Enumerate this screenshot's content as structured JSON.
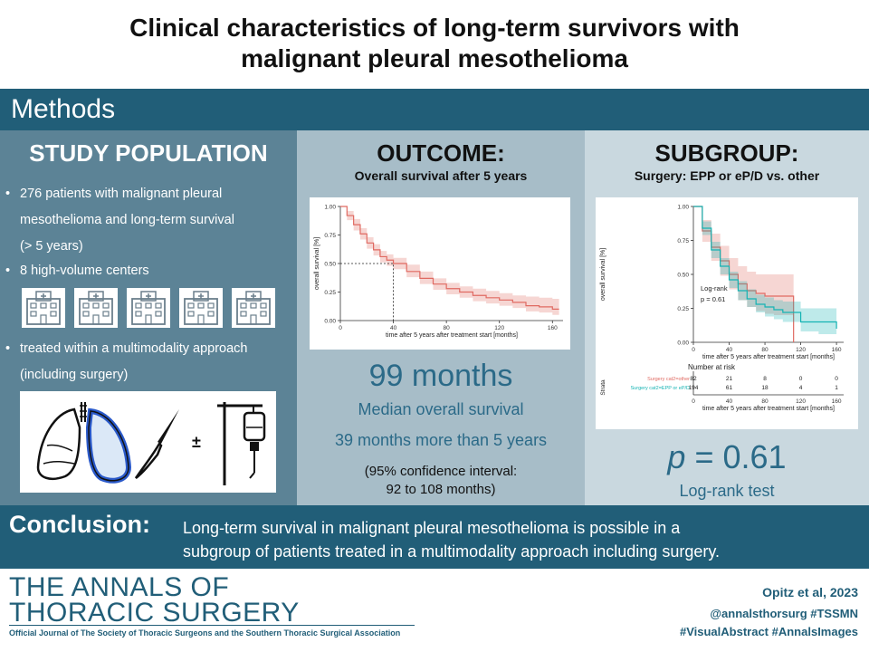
{
  "title": {
    "line1": "Clinical characteristics of long-term survivors with",
    "line2": "malignant pleural mesothelioma"
  },
  "methods": {
    "label": "Methods"
  },
  "study_population": {
    "heading": "STUDY POPULATION",
    "bullets": [
      {
        "lines": [
          "276 patients with malignant pleural",
          "mesothelioma and long-term survival",
          "(> 5 years)"
        ]
      },
      {
        "lines": [
          "8 high-volume centers"
        ]
      },
      {
        "lines": [
          "treated within a multimodality approach",
          "(including surgery)"
        ]
      }
    ],
    "hospital_icon_count": 5,
    "plus_minus": "±"
  },
  "outcome": {
    "heading": "OUTCOME:",
    "subheading": "Overall survival after 5 years",
    "median_value": "99 months",
    "median_label": "Median overall survival",
    "more_than": "39 months more than 5 years",
    "ci_line1": "(95% confidence interval:",
    "ci_line2": "92 to 108 months)"
  },
  "subgroup": {
    "heading": "SUBGROUP:",
    "subheading": "Surgery: EPP or eP/D vs. other",
    "p_symbol": "p",
    "p_value": "= 0.61",
    "test_label": "Log-rank test"
  },
  "conclusion": {
    "label": "Conclusion:",
    "line1": "Long-term survival in malignant pleural mesothelioma is possible in a",
    "line2": "subgroup of patients treated in a multimodality approach including surgery."
  },
  "footer": {
    "journal_line1": "THE ANNALS OF",
    "journal_line2": "THORACIC SURGERY",
    "journal_sub": "Official Journal of The Society of Thoracic Surgeons and the Southern Thoracic Surgical Association",
    "citation": "Opitz et al, 2023",
    "handle": "@annalsthorsurg #TSSMN",
    "tags": "#VisualAbstract #AnnalsImages"
  },
  "colors": {
    "accent": "#215e78",
    "km_red": "#e06a62",
    "km_teal": "#14b3b3"
  },
  "chart_data": [
    {
      "type": "line",
      "title": "",
      "xlabel": "time after 5 years after treatment start [months]",
      "ylabel": "overall survival [%]",
      "xlim": [
        0,
        168
      ],
      "ylim": [
        0,
        1
      ],
      "x_ticks": [
        0,
        40,
        80,
        120,
        160
      ],
      "y_ticks": [
        0.0,
        0.25,
        0.5,
        0.75,
        1.0
      ],
      "y_tick_labels": [
        "0.00",
        "0.25",
        "0.50",
        "0.75",
        "1.00"
      ],
      "median_marker": {
        "x": 40,
        "y": 0.5
      },
      "series": [
        {
          "name": "overall",
          "x": [
            0,
            5,
            10,
            15,
            20,
            25,
            30,
            35,
            40,
            50,
            60,
            70,
            80,
            90,
            100,
            110,
            120,
            130,
            140,
            150,
            160,
            165
          ],
          "values": [
            1.0,
            0.92,
            0.84,
            0.76,
            0.68,
            0.62,
            0.56,
            0.53,
            0.5,
            0.43,
            0.37,
            0.32,
            0.28,
            0.25,
            0.22,
            0.2,
            0.18,
            0.16,
            0.13,
            0.12,
            0.1,
            0.1
          ],
          "ci_low": [
            1.0,
            0.88,
            0.79,
            0.71,
            0.63,
            0.57,
            0.51,
            0.48,
            0.45,
            0.38,
            0.32,
            0.27,
            0.23,
            0.2,
            0.17,
            0.15,
            0.13,
            0.11,
            0.08,
            0.07,
            0.05,
            0.05
          ],
          "ci_high": [
            1.0,
            0.96,
            0.89,
            0.81,
            0.73,
            0.67,
            0.61,
            0.58,
            0.55,
            0.49,
            0.43,
            0.37,
            0.33,
            0.3,
            0.28,
            0.26,
            0.24,
            0.22,
            0.21,
            0.2,
            0.19,
            0.19
          ]
        }
      ]
    },
    {
      "type": "line",
      "title": "",
      "xlabel": "time after 5 years after treatment start [months]",
      "ylabel": "overall survival [%]",
      "xlim": [
        0,
        168
      ],
      "ylim": [
        0,
        1
      ],
      "x_ticks": [
        0,
        40,
        80,
        120,
        160
      ],
      "y_ticks": [
        0.0,
        0.25,
        0.5,
        0.75,
        1.0
      ],
      "y_tick_labels": [
        "0.00",
        "0.25",
        "0.50",
        "0.75",
        "1.00"
      ],
      "annotation_lines": [
        "Log-rank",
        "p = 0.61"
      ],
      "series": [
        {
          "name": "Surgery cat2=other",
          "x": [
            0,
            10,
            20,
            30,
            40,
            50,
            60,
            70,
            80,
            90,
            100,
            110,
            112
          ],
          "values": [
            1.0,
            0.82,
            0.7,
            0.6,
            0.5,
            0.43,
            0.38,
            0.36,
            0.34,
            0.34,
            0.34,
            0.34,
            0.0
          ],
          "ci_low": [
            1.0,
            0.74,
            0.6,
            0.49,
            0.39,
            0.31,
            0.26,
            0.23,
            0.21,
            0.2,
            0.2,
            0.2,
            0.0
          ],
          "ci_high": [
            1.0,
            0.9,
            0.8,
            0.71,
            0.62,
            0.56,
            0.52,
            0.5,
            0.5,
            0.5,
            0.5,
            0.5,
            0.0
          ]
        },
        {
          "name": "Surgery cat2=EPP or eP/D",
          "x": [
            0,
            10,
            20,
            30,
            40,
            50,
            60,
            70,
            80,
            90,
            100,
            120,
            140,
            160
          ],
          "values": [
            1.0,
            0.84,
            0.68,
            0.56,
            0.46,
            0.38,
            0.32,
            0.28,
            0.26,
            0.24,
            0.22,
            0.15,
            0.15,
            0.1
          ],
          "ci_low": [
            1.0,
            0.79,
            0.62,
            0.5,
            0.4,
            0.31,
            0.26,
            0.22,
            0.19,
            0.17,
            0.15,
            0.08,
            0.06,
            0.03
          ],
          "ci_high": [
            1.0,
            0.89,
            0.74,
            0.62,
            0.52,
            0.45,
            0.39,
            0.35,
            0.33,
            0.31,
            0.3,
            0.25,
            0.25,
            0.25
          ]
        }
      ],
      "risk_table": {
        "title": "Number at risk",
        "strata_label": "Strata",
        "time_points": [
          0,
          40,
          80,
          120,
          160
        ],
        "rows": [
          {
            "label": "Surgery cat2=other",
            "values": [
              "82",
              "21",
              "8",
              "0",
              "0"
            ]
          },
          {
            "label": "Surgery cat2=EPP or eP/D",
            "values": [
              "194",
              "61",
              "18",
              "4",
              "1"
            ]
          }
        ]
      }
    }
  ]
}
